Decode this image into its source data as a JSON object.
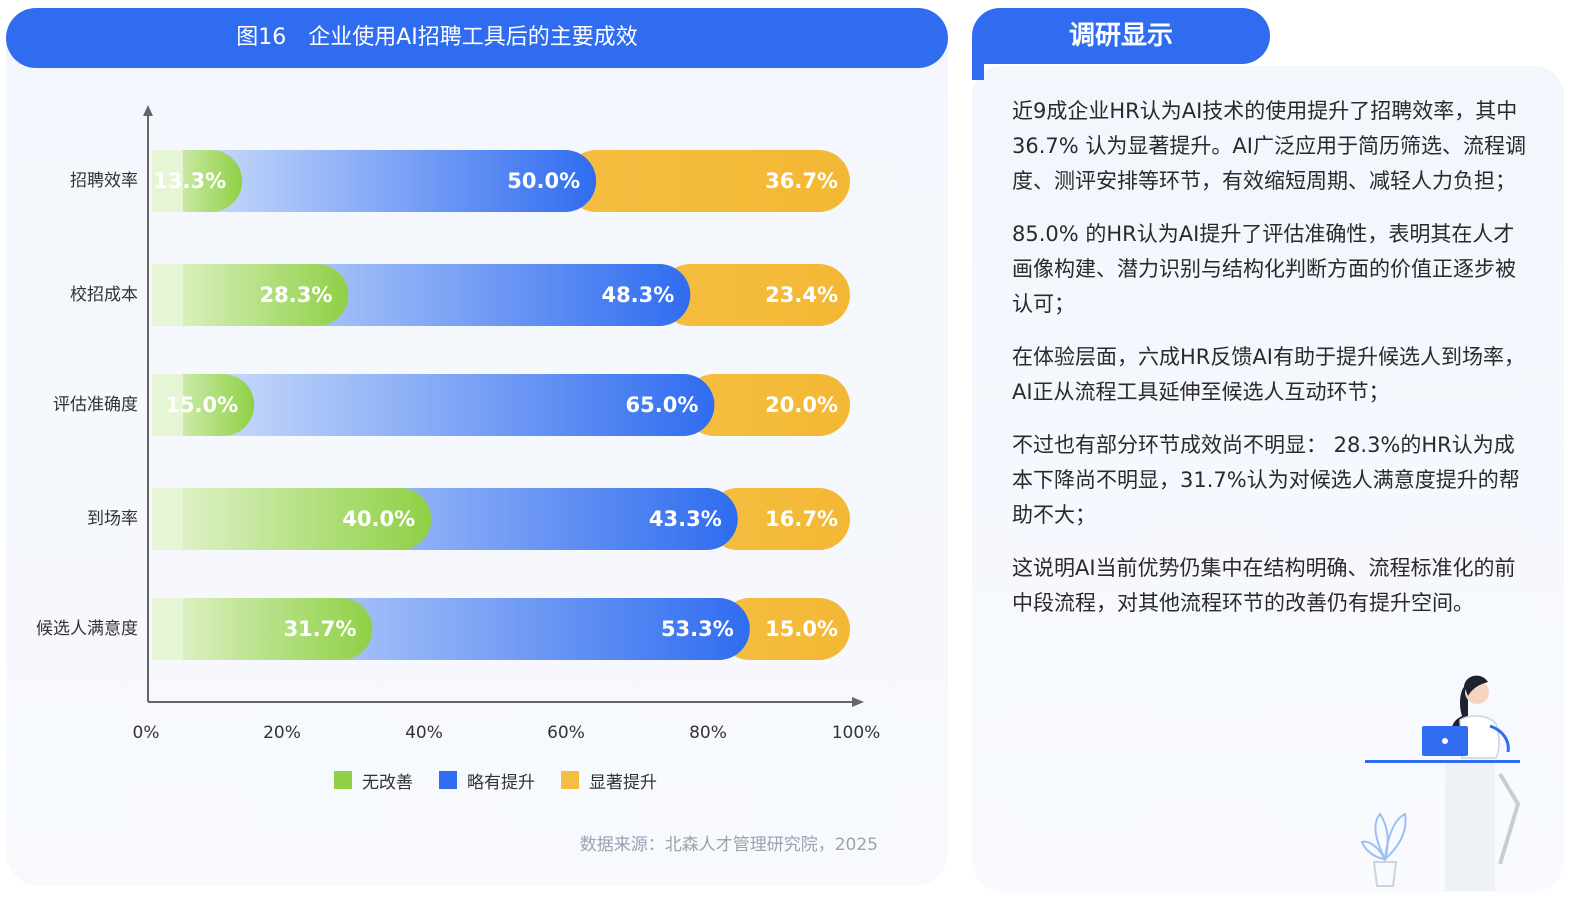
{
  "panel": {
    "title": "图16　企业使用AI招聘工具后的主要成效"
  },
  "chart_data": {
    "type": "bar",
    "orientation": "horizontal",
    "stacked": true,
    "categories": [
      "招聘效率",
      "校招成本",
      "评估准确度",
      "到场率",
      "候选人满意度"
    ],
    "series": [
      {
        "name": "无改善",
        "values": [
          13.3,
          28.3,
          15.0,
          40.0,
          31.7
        ],
        "labels": [
          "13.3%",
          "28.3%",
          "15.0%",
          "40.0%",
          "31.7%"
        ],
        "color": "#8fd045"
      },
      {
        "name": "略有提升",
        "values": [
          50.0,
          48.3,
          65.0,
          43.3,
          53.3
        ],
        "labels": [
          "50.0%",
          "48.3%",
          "65.0%",
          "43.3%",
          "53.3%"
        ],
        "color": "#2f6cf0"
      },
      {
        "name": "显著提升",
        "values": [
          36.7,
          23.4,
          20.0,
          16.7,
          15.0
        ],
        "labels": [
          "36.7%",
          "23.4%",
          "20.0%",
          "16.7%",
          "15.0%"
        ],
        "color": "#f5be41"
      }
    ],
    "xticks": [
      "0%",
      "20%",
      "40%",
      "60%",
      "80%",
      "100%"
    ],
    "xlim": [
      0,
      100
    ],
    "legend_position": "bottom",
    "grid": false
  },
  "source": "数据来源：北森人才管理研究院，2025",
  "side": {
    "title": "调研显示",
    "paragraphs": [
      "近9成企业HR认为AI技术的使用提升了招聘效率，其中36.7% 认为显著提升。AI广泛应用于简历筛选、流程调度、测评安排等环节，有效缩短周期、减轻人力负担；",
      "85.0% 的HR认为AI提升了评估准确性，表明其在人才画像构建、潜力识别与结构化判断方面的价值正逐步被认可；",
      "在体验层面，六成HR反馈AI有助于提升候选人到场率，AI正从流程工具延伸至候选人互动环节；",
      "不过也有部分环节成效尚不明显： 28.3%的HR认为成本下降尚不明显，31.7%认为对候选人满意度提升的帮助不大；",
      "这说明AI当前优势仍集中在结构明确、流程标准化的前中段流程，对其他流程环节的改善仍有提升空间。"
    ]
  }
}
